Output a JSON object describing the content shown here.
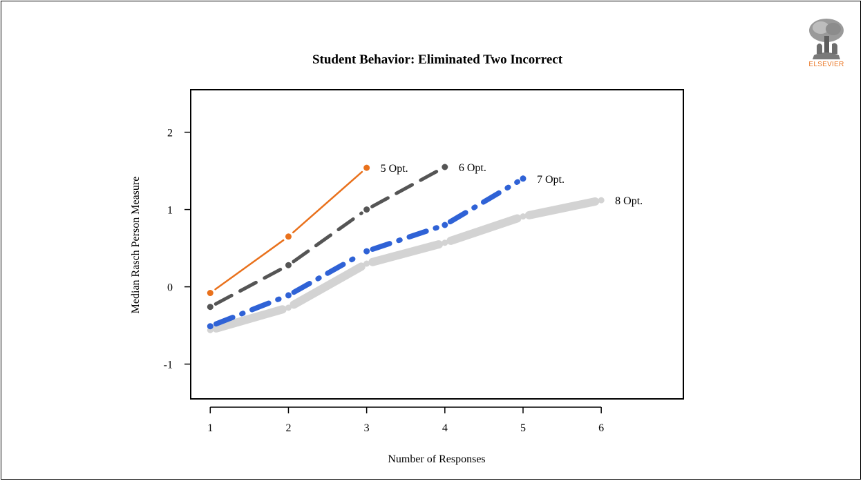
{
  "publisher_logo": {
    "text": "ELSEVIER"
  },
  "chart_data": {
    "type": "line",
    "title": "Student Behavior: Eliminated Two Incorrect",
    "xlabel": "Number of Responses",
    "ylabel": "Median Rasch Person Measure",
    "x_ticks": [
      1,
      2,
      3,
      4,
      5,
      6
    ],
    "y_ticks": [
      -1,
      0,
      1,
      2
    ],
    "xlim": [
      0.75,
      7.05
    ],
    "ylim": [
      -1.45,
      2.55
    ],
    "grid": false,
    "legend": "none (series labeled at line ends)",
    "series": [
      {
        "name": "5 Opt.",
        "color": "#e9711c",
        "style": "solid-thin",
        "x": [
          1,
          2,
          3
        ],
        "y": [
          -0.08,
          0.65,
          1.54
        ]
      },
      {
        "name": "6 Opt.",
        "color": "#555555",
        "style": "dashed",
        "x": [
          1,
          2,
          3,
          4
        ],
        "y": [
          -0.26,
          0.28,
          1.0,
          1.55
        ]
      },
      {
        "name": "7 Opt.",
        "color": "#2f62d6",
        "style": "dash-dot-thick",
        "x": [
          1,
          2,
          3,
          4,
          5
        ],
        "y": [
          -0.51,
          -0.11,
          0.46,
          0.8,
          1.4
        ]
      },
      {
        "name": "8 Opt.",
        "color": "#d3d3d3",
        "style": "solid-very-thick",
        "x": [
          1,
          2,
          3,
          4,
          5,
          6
        ],
        "y": [
          -0.56,
          -0.27,
          0.3,
          0.57,
          0.91,
          1.12
        ]
      }
    ]
  }
}
